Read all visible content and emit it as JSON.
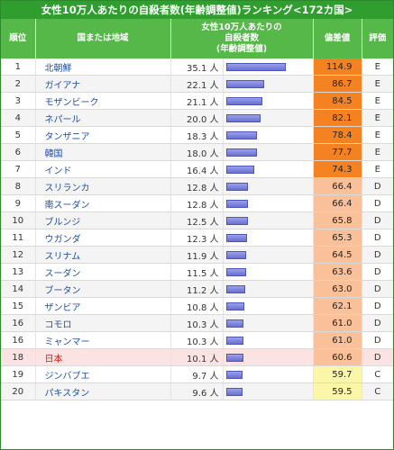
{
  "title": "女性10万人あたりの自殺者数(年齢調整値)ランキング<172カ国>",
  "headers": {
    "rank": "順位",
    "country": "国または地域",
    "rate_line1": "女性10万人あたりの",
    "rate_line2": "自殺者数",
    "rate_line3": "(年齢調整値)",
    "deviation": "偏差値",
    "grade": "評価"
  },
  "colors": {
    "header_green": "#2f9e2f",
    "grade_E": "#f58220",
    "grade_D": "#f9c09a",
    "grade_C": "#fbf6a8",
    "highlight_row": "#fbe3e3",
    "bar": "#7d83dd"
  },
  "bar_max_value": 35.1,
  "rows": [
    {
      "rank": "1",
      "country": "北朝鮮",
      "value": "35.1 人",
      "rate": 35.1,
      "deviation": "114.9",
      "grade": "E"
    },
    {
      "rank": "2",
      "country": "ガイアナ",
      "value": "22.1 人",
      "rate": 22.1,
      "deviation": "86.7",
      "grade": "E"
    },
    {
      "rank": "3",
      "country": "モザンビーク",
      "value": "21.1 人",
      "rate": 21.1,
      "deviation": "84.5",
      "grade": "E"
    },
    {
      "rank": "4",
      "country": "ネパール",
      "value": "20.0 人",
      "rate": 20.0,
      "deviation": "82.1",
      "grade": "E"
    },
    {
      "rank": "5",
      "country": "タンザニア",
      "value": "18.3 人",
      "rate": 18.3,
      "deviation": "78.4",
      "grade": "E"
    },
    {
      "rank": "6",
      "country": "韓国",
      "value": "18.0 人",
      "rate": 18.0,
      "deviation": "77.7",
      "grade": "E"
    },
    {
      "rank": "7",
      "country": "インド",
      "value": "16.4 人",
      "rate": 16.4,
      "deviation": "74.3",
      "grade": "E"
    },
    {
      "rank": "8",
      "country": "スリランカ",
      "value": "12.8 人",
      "rate": 12.8,
      "deviation": "66.4",
      "grade": "D"
    },
    {
      "rank": "9",
      "country": "南スーダン",
      "value": "12.8 人",
      "rate": 12.8,
      "deviation": "66.4",
      "grade": "D"
    },
    {
      "rank": "10",
      "country": "ブルンジ",
      "value": "12.5 人",
      "rate": 12.5,
      "deviation": "65.8",
      "grade": "D"
    },
    {
      "rank": "11",
      "country": "ウガンダ",
      "value": "12.3 人",
      "rate": 12.3,
      "deviation": "65.3",
      "grade": "D"
    },
    {
      "rank": "12",
      "country": "スリナム",
      "value": "11.9 人",
      "rate": 11.9,
      "deviation": "64.5",
      "grade": "D"
    },
    {
      "rank": "13",
      "country": "スーダン",
      "value": "11.5 人",
      "rate": 11.5,
      "deviation": "63.6",
      "grade": "D"
    },
    {
      "rank": "14",
      "country": "ブータン",
      "value": "11.2 人",
      "rate": 11.2,
      "deviation": "63.0",
      "grade": "D"
    },
    {
      "rank": "15",
      "country": "ザンビア",
      "value": "10.8 人",
      "rate": 10.8,
      "deviation": "62.1",
      "grade": "D"
    },
    {
      "rank": "16",
      "country": "コモロ",
      "value": "10.3 人",
      "rate": 10.3,
      "deviation": "61.0",
      "grade": "D"
    },
    {
      "rank": "16",
      "country": "ミャンマー",
      "value": "10.3 人",
      "rate": 10.3,
      "deviation": "61.0",
      "grade": "D"
    },
    {
      "rank": "18",
      "country": "日本",
      "value": "10.1 人",
      "rate": 10.1,
      "deviation": "60.6",
      "grade": "D",
      "highlight": true
    },
    {
      "rank": "19",
      "country": "ジンバブエ",
      "value": "9.7 人",
      "rate": 9.7,
      "deviation": "59.7",
      "grade": "C"
    },
    {
      "rank": "20",
      "country": "パキスタン",
      "value": "9.6 人",
      "rate": 9.6,
      "deviation": "59.5",
      "grade": "C"
    }
  ]
}
